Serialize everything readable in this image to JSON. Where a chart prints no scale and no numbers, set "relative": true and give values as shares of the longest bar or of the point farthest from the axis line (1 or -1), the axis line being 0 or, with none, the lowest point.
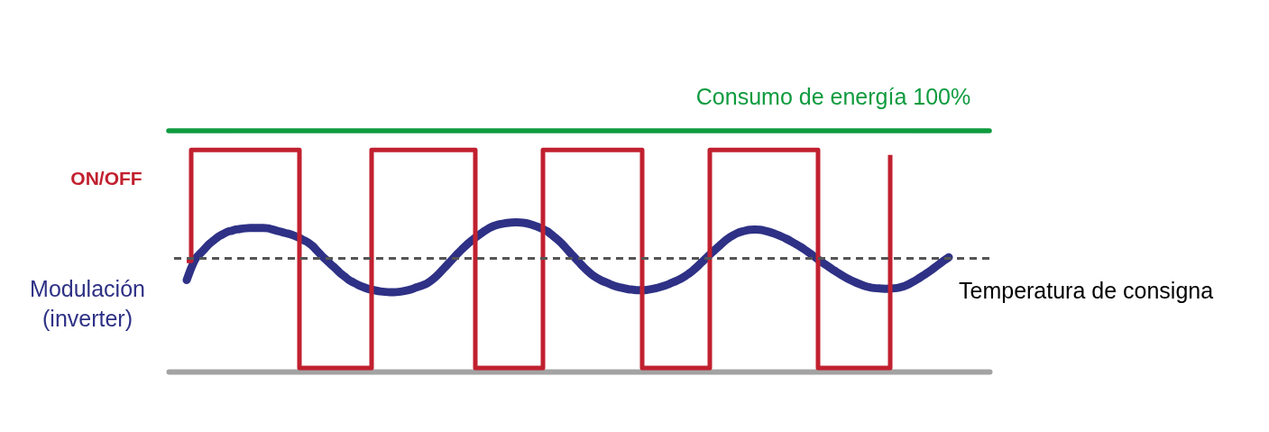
{
  "chart_data": {
    "type": "line",
    "relative": true,
    "categories": [
      null,
      null,
      null,
      null,
      null,
      null,
      null,
      null,
      null,
      null,
      null,
      null,
      null,
      null,
      null,
      null,
      null,
      null,
      null,
      null,
      null,
      null,
      null,
      null,
      null,
      null,
      null,
      null,
      null,
      null,
      null,
      null,
      null,
      null,
      null,
      null,
      null,
      null,
      null,
      null,
      null,
      null,
      null,
      null,
      null,
      null,
      null,
      null,
      null,
      null,
      null,
      null,
      null,
      null,
      null,
      null,
      null,
      null,
      null,
      null,
      null,
      null,
      null,
      null,
      null,
      null,
      null,
      null,
      null,
      null,
      null,
      null,
      null,
      null,
      null,
      null,
      null,
      null,
      null,
      null,
      null,
      null,
      null,
      null,
      null,
      null,
      null,
      null,
      null,
      null,
      null,
      null,
      null,
      null,
      null,
      null,
      null,
      null,
      null,
      null,
      null,
      null,
      null,
      null,
      null,
      null,
      null,
      null,
      null,
      null,
      null,
      null,
      null,
      null,
      null,
      null,
      null,
      null,
      null,
      null,
      null,
      null,
      null,
      null,
      null,
      null,
      null,
      null,
      null,
      null,
      null,
      null,
      null,
      null,
      null,
      null,
      null,
      null,
      null,
      null,
      null,
      null,
      null,
      null,
      null,
      null,
      null,
      null,
      null,
      null,
      null,
      null,
      null,
      null,
      null,
      null,
      null,
      null,
      null,
      null,
      null,
      null,
      null,
      null,
      null,
      null,
      null,
      null,
      null,
      null,
      null,
      null,
      null,
      null,
      null,
      null,
      null,
      null,
      null,
      null,
      null,
      null,
      null
    ],
    "series": [
      {
        "name": "Consumo de energía 100%",
        "color": "#0f9b3f",
        "values": [
          1,
          1,
          1,
          1,
          1,
          1,
          1,
          1,
          1,
          1,
          1,
          1,
          1,
          1,
          1,
          1,
          1,
          1,
          1,
          1,
          1,
          1,
          1,
          1,
          1,
          1,
          1,
          1,
          1,
          1,
          1,
          1,
          1,
          1,
          1,
          1,
          1,
          1,
          1,
          1,
          1,
          1,
          1,
          1,
          1,
          1,
          1,
          1,
          1,
          1,
          1,
          1,
          1,
          1,
          1,
          1,
          1,
          1,
          1,
          1,
          1,
          1,
          1,
          1,
          1,
          1,
          1,
          1,
          1,
          1,
          1,
          1,
          1,
          1,
          1,
          1,
          1,
          1,
          1,
          1,
          1,
          1,
          1,
          1,
          1,
          1,
          1,
          1,
          1,
          1,
          1,
          1,
          1,
          1,
          1,
          1,
          1,
          1,
          1,
          1,
          1,
          1,
          1,
          1,
          1,
          1,
          1,
          1,
          1,
          1,
          1,
          1,
          1,
          1,
          1,
          1,
          1,
          1,
          1,
          1,
          1,
          1,
          1,
          1,
          1,
          1,
          1,
          1,
          1,
          1,
          1,
          1,
          1,
          1,
          1,
          1,
          1,
          1,
          1,
          1,
          1,
          1,
          1,
          1,
          1,
          1,
          1,
          1,
          1,
          1,
          1,
          1,
          1,
          1,
          1,
          1,
          1,
          1,
          1,
          1,
          1,
          1,
          1,
          1,
          1,
          1,
          1,
          1,
          1,
          1,
          1,
          1,
          1,
          1,
          1,
          1,
          1,
          1,
          1,
          1,
          1,
          1,
          1
        ]
      },
      {
        "name": "Modulación (inverter)",
        "color": "#2e3185",
        "values": [
          null,
          null,
          null,
          null,
          0.38,
          0.43,
          0.47,
          0.49,
          0.51,
          0.53,
          0.545,
          0.56,
          0.57,
          0.58,
          0.585,
          0.59,
          0.593,
          0.595,
          0.596,
          0.596,
          0.596,
          0.596,
          0.595,
          0.59,
          0.585,
          0.58,
          0.575,
          0.57,
          0.563,
          0.555,
          0.545,
          0.535,
          0.52,
          0.5,
          0.48,
          0.463,
          0.445,
          0.428,
          0.41,
          0.395,
          0.38,
          0.37,
          0.36,
          0.352,
          0.345,
          0.34,
          0.336,
          0.333,
          0.331,
          0.33,
          0.33,
          0.331,
          0.334,
          0.338,
          0.343,
          0.35,
          0.356,
          0.363,
          0.375,
          0.39,
          0.408,
          0.428,
          0.448,
          0.468,
          0.488,
          0.507,
          0.525,
          0.541,
          0.556,
          0.57,
          0.583,
          0.595,
          0.604,
          0.61,
          0.614,
          0.617,
          0.619,
          0.62,
          0.619,
          0.617,
          0.613,
          0.607,
          0.6,
          0.592,
          0.582,
          0.567,
          0.552,
          0.535,
          0.515,
          0.494,
          0.474,
          0.454,
          0.434,
          0.416,
          0.4,
          0.388,
          0.378,
          0.37,
          0.362,
          0.355,
          0.35,
          0.346,
          0.342,
          0.34,
          0.338,
          0.338,
          0.339,
          0.342,
          0.346,
          0.351,
          0.357,
          0.364,
          0.372,
          0.38,
          0.39,
          0.402,
          0.416,
          0.432,
          0.45,
          0.468,
          0.486,
          0.503,
          0.52,
          0.537,
          0.552,
          0.564,
          0.574,
          0.581,
          0.586,
          0.589,
          0.59,
          0.589,
          0.586,
          0.581,
          0.575,
          0.568,
          0.56,
          0.551,
          0.541,
          0.53,
          0.519,
          0.507,
          0.494,
          0.48,
          0.466,
          0.452,
          0.44,
          0.427,
          0.415,
          0.403,
          0.392,
          0.382,
          0.373,
          0.365,
          0.358,
          0.352,
          0.348,
          0.346,
          0.345,
          0.344,
          0.345,
          0.346,
          0.349,
          0.354,
          0.362,
          0.372,
          0.383,
          0.395,
          0.407,
          0.42,
          0.434,
          0.448,
          0.462,
          0.475,
          null,
          null,
          null,
          null,
          null,
          null,
          null,
          null,
          null
        ]
      },
      {
        "name": "ON/OFF",
        "type": "step",
        "color": "#c1202f",
        "values": [
          null,
          null,
          null,
          null,
          0.46,
          0.92,
          0.92,
          0.92,
          0.92,
          0.92,
          0.92,
          0.92,
          0.92,
          0.92,
          0.92,
          0.92,
          0.92,
          0.92,
          0.92,
          0.92,
          0.92,
          0.92,
          0.92,
          0.92,
          0.92,
          0.92,
          0.92,
          0.92,
          0.92,
          0.015,
          0.015,
          0.015,
          0.015,
          0.015,
          0.015,
          0.015,
          0.015,
          0.015,
          0.015,
          0.015,
          0.015,
          0.015,
          0.015,
          0.015,
          0.015,
          0.92,
          0.92,
          0.92,
          0.92,
          0.92,
          0.92,
          0.92,
          0.92,
          0.92,
          0.92,
          0.92,
          0.92,
          0.92,
          0.92,
          0.92,
          0.92,
          0.92,
          0.92,
          0.92,
          0.92,
          0.92,
          0.92,
          0.92,
          0.015,
          0.015,
          0.015,
          0.015,
          0.015,
          0.015,
          0.015,
          0.015,
          0.015,
          0.015,
          0.015,
          0.015,
          0.015,
          0.015,
          0.015,
          0.92,
          0.92,
          0.92,
          0.92,
          0.92,
          0.92,
          0.92,
          0.92,
          0.92,
          0.92,
          0.92,
          0.92,
          0.92,
          0.92,
          0.92,
          0.92,
          0.92,
          0.92,
          0.92,
          0.92,
          0.92,
          0.92,
          0.015,
          0.015,
          0.015,
          0.015,
          0.015,
          0.015,
          0.015,
          0.015,
          0.015,
          0.015,
          0.015,
          0.015,
          0.015,
          0.015,
          0.015,
          0.92,
          0.92,
          0.92,
          0.92,
          0.92,
          0.92,
          0.92,
          0.92,
          0.92,
          0.92,
          0.92,
          0.92,
          0.92,
          0.92,
          0.92,
          0.92,
          0.92,
          0.92,
          0.92,
          0.92,
          0.92,
          0.92,
          0.92,
          0.92,
          0.015,
          0.015,
          0.015,
          0.015,
          0.015,
          0.015,
          0.015,
          0.015,
          0.015,
          0.015,
          0.015,
          0.015,
          0.015,
          0.015,
          0.015,
          0.015,
          0.9,
          null,
          null,
          null,
          null,
          null,
          null,
          null,
          null,
          null,
          null,
          null,
          null,
          null,
          null,
          null,
          null,
          null,
          null,
          null,
          null,
          null,
          null
        ]
      }
    ],
    "ref_lines": [
      {
        "axis": "y",
        "value": 0.47,
        "label": "Temperatura de consigna",
        "color": "#555555",
        "line_style": "dashed"
      }
    ]
  }
}
